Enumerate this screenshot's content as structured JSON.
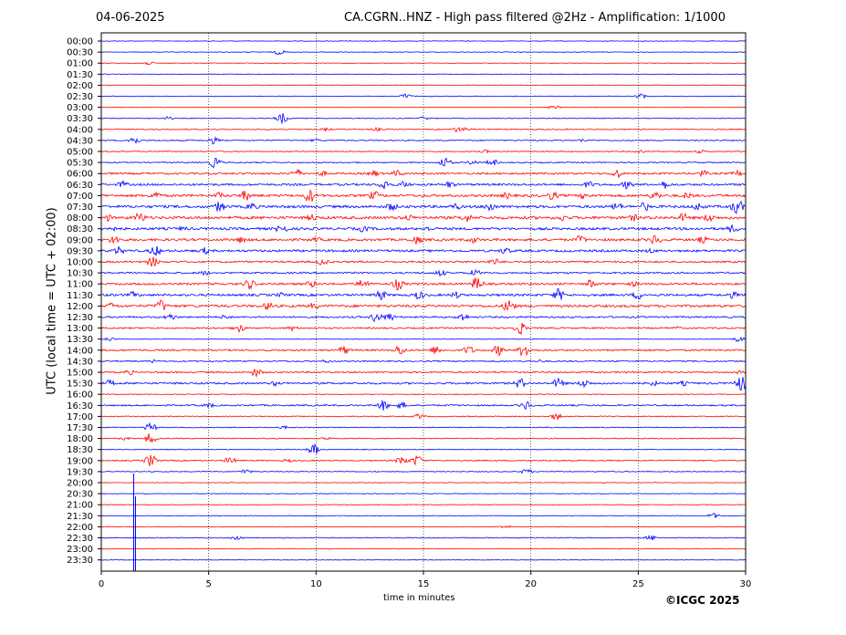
{
  "header": {
    "date": "04-06-2025",
    "title": "CA.CGRN..HNZ - High pass filtered @2Hz - Amplification: 1/1000"
  },
  "footer": {
    "copyright": "©ICGC 2025"
  },
  "chart_data": {
    "type": "line",
    "title": "CA.CGRN..HNZ - High pass filtered @2Hz - Amplification: 1/1000",
    "xlabel": "time in minutes",
    "ylabel": "UTC (local time = UTC + 02:00)",
    "xlim": [
      0,
      30
    ],
    "x_ticks": [
      0,
      5,
      10,
      15,
      20,
      25,
      30
    ],
    "grid": "vertical dotted lines at 5, 10, 15, 20, 25",
    "y_tick_labels": [
      "00:00",
      "00:30",
      "01:00",
      "01:30",
      "02:00",
      "02:30",
      "03:00",
      "03:30",
      "04:00",
      "04:30",
      "05:00",
      "05:30",
      "06:00",
      "06:30",
      "07:00",
      "07:30",
      "08:00",
      "08:30",
      "09:00",
      "09:30",
      "10:00",
      "10:30",
      "11:00",
      "11:30",
      "12:00",
      "12:30",
      "13:00",
      "13:30",
      "14:00",
      "14:30",
      "15:00",
      "15:30",
      "16:00",
      "16:30",
      "17:00",
      "17:30",
      "18:00",
      "18:30",
      "19:00",
      "19:30",
      "20:00",
      "20:30",
      "21:00",
      "21:30",
      "22:00",
      "22:30",
      "23:00",
      "23:30"
    ],
    "trace_colors": [
      "#0000ff",
      "#ff0000"
    ],
    "traces": [
      {
        "label": "00:00",
        "color": "#0000ff",
        "noise": 0.3,
        "bursts": []
      },
      {
        "label": "00:30",
        "color": "#0000ff",
        "noise": 0.3,
        "bursts": [
          [
            8.3,
            3
          ]
        ]
      },
      {
        "label": "01:00",
        "color": "#ff0000",
        "noise": 0.3,
        "bursts": [
          [
            2.2,
            2
          ]
        ]
      },
      {
        "label": "01:30",
        "color": "#0000ff",
        "noise": 0.3,
        "bursts": []
      },
      {
        "label": "02:00",
        "color": "#ff0000",
        "noise": 0.3,
        "bursts": []
      },
      {
        "label": "02:30",
        "color": "#0000ff",
        "noise": 0.3,
        "bursts": [
          [
            14.2,
            3
          ],
          [
            25.1,
            3
          ]
        ]
      },
      {
        "label": "03:00",
        "color": "#ff0000",
        "noise": 0.3,
        "bursts": [
          [
            21.1,
            2
          ]
        ]
      },
      {
        "label": "03:30",
        "color": "#0000ff",
        "noise": 0.4,
        "bursts": [
          [
            3.1,
            2
          ],
          [
            8.4,
            6
          ],
          [
            15.0,
            2
          ]
        ]
      },
      {
        "label": "04:00",
        "color": "#ff0000",
        "noise": 0.5,
        "bursts": [
          [
            10.5,
            2
          ],
          [
            12.8,
            2
          ],
          [
            16.6,
            3
          ],
          [
            17.0,
            2
          ]
        ]
      },
      {
        "label": "04:30",
        "color": "#0000ff",
        "noise": 0.6,
        "bursts": [
          [
            1.5,
            5
          ],
          [
            5.2,
            4
          ],
          [
            10.0,
            2
          ],
          [
            22.4,
            2
          ]
        ]
      },
      {
        "label": "05:00",
        "color": "#ff0000",
        "noise": 0.5,
        "bursts": [
          [
            17.9,
            2
          ],
          [
            25.1,
            2
          ],
          [
            27.9,
            2
          ]
        ]
      },
      {
        "label": "05:30",
        "color": "#0000ff",
        "noise": 0.6,
        "bursts": [
          [
            5.3,
            6
          ],
          [
            16.0,
            6
          ],
          [
            17.3,
            3
          ],
          [
            18.2,
            4
          ]
        ]
      },
      {
        "label": "06:00",
        "color": "#ff0000",
        "noise": 1.0,
        "bursts": [
          [
            9.1,
            5
          ],
          [
            10.3,
            3
          ],
          [
            12.7,
            4
          ],
          [
            13.8,
            4
          ],
          [
            24.0,
            5
          ],
          [
            28.0,
            4
          ],
          [
            29.6,
            4
          ]
        ]
      },
      {
        "label": "06:30",
        "color": "#0000ff",
        "noise": 1.1,
        "bursts": [
          [
            1.0,
            4
          ],
          [
            13.2,
            6
          ],
          [
            14.1,
            4
          ],
          [
            16.2,
            4
          ],
          [
            22.7,
            4
          ],
          [
            24.5,
            5
          ],
          [
            26.2,
            5
          ]
        ]
      },
      {
        "label": "07:00",
        "color": "#ff0000",
        "noise": 1.3,
        "bursts": [
          [
            2.5,
            5
          ],
          [
            5.5,
            4
          ],
          [
            6.7,
            6
          ],
          [
            9.7,
            8
          ],
          [
            12.7,
            5
          ],
          [
            18.9,
            4
          ],
          [
            21.0,
            5
          ],
          [
            22.5,
            4
          ],
          [
            25.8,
            5
          ],
          [
            27.3,
            4
          ]
        ]
      },
      {
        "label": "07:30",
        "color": "#0000ff",
        "noise": 1.4,
        "bursts": [
          [
            5.5,
            6
          ],
          [
            7.0,
            5
          ],
          [
            13.5,
            5
          ],
          [
            16.5,
            4
          ],
          [
            18.1,
            6
          ],
          [
            24.0,
            5
          ],
          [
            25.3,
            5
          ],
          [
            27.8,
            5
          ],
          [
            29.6,
            9
          ]
        ]
      },
      {
        "label": "08:00",
        "color": "#ff0000",
        "noise": 1.5,
        "bursts": [
          [
            0.3,
            4
          ],
          [
            1.8,
            6
          ],
          [
            9.8,
            4
          ],
          [
            14.3,
            4
          ],
          [
            17.0,
            5
          ],
          [
            21.5,
            4
          ],
          [
            24.8,
            4
          ],
          [
            27.1,
            5
          ],
          [
            28.3,
            5
          ]
        ]
      },
      {
        "label": "08:30",
        "color": "#0000ff",
        "noise": 1.3,
        "bursts": [
          [
            0.4,
            4
          ],
          [
            3.8,
            3
          ],
          [
            8.4,
            6
          ],
          [
            12.2,
            4
          ],
          [
            15.2,
            3
          ],
          [
            29.4,
            5
          ]
        ]
      },
      {
        "label": "09:00",
        "color": "#ff0000",
        "noise": 1.3,
        "bursts": [
          [
            0.6,
            5
          ],
          [
            6.5,
            4
          ],
          [
            10.0,
            3
          ],
          [
            14.7,
            5
          ],
          [
            17.3,
            4
          ],
          [
            22.3,
            5
          ],
          [
            25.8,
            6
          ],
          [
            28.0,
            4
          ]
        ]
      },
      {
        "label": "09:30",
        "color": "#0000ff",
        "noise": 1.2,
        "bursts": [
          [
            0.8,
            5
          ],
          [
            2.5,
            6
          ],
          [
            4.8,
            4
          ],
          [
            18.8,
            4
          ],
          [
            25.6,
            3
          ]
        ]
      },
      {
        "label": "10:00",
        "color": "#ff0000",
        "noise": 1.0,
        "bursts": [
          [
            2.4,
            6
          ],
          [
            10.3,
            4
          ],
          [
            18.3,
            4
          ]
        ]
      },
      {
        "label": "10:30",
        "color": "#0000ff",
        "noise": 0.9,
        "bursts": [
          [
            4.8,
            3
          ],
          [
            15.8,
            4
          ],
          [
            17.4,
            4
          ]
        ]
      },
      {
        "label": "11:00",
        "color": "#ff0000",
        "noise": 1.1,
        "bursts": [
          [
            6.9,
            6
          ],
          [
            9.8,
            4
          ],
          [
            12.2,
            6
          ],
          [
            13.8,
            7
          ],
          [
            17.5,
            8
          ],
          [
            22.8,
            5
          ],
          [
            24.8,
            3
          ]
        ]
      },
      {
        "label": "11:30",
        "color": "#0000ff",
        "noise": 1.2,
        "bursts": [
          [
            1.5,
            4
          ],
          [
            8.4,
            3
          ],
          [
            13.0,
            6
          ],
          [
            14.8,
            5
          ],
          [
            16.5,
            4
          ],
          [
            21.3,
            7
          ],
          [
            25.0,
            5
          ],
          [
            29.4,
            4
          ]
        ]
      },
      {
        "label": "12:00",
        "color": "#ff0000",
        "noise": 1.3,
        "bursts": [
          [
            0.5,
            4
          ],
          [
            2.8,
            7
          ],
          [
            7.8,
            5
          ],
          [
            9.9,
            4
          ],
          [
            19.0,
            8
          ]
        ]
      },
      {
        "label": "12:30",
        "color": "#0000ff",
        "noise": 0.9,
        "bursts": [
          [
            3.2,
            4
          ],
          [
            5.8,
            3
          ],
          [
            12.8,
            6
          ],
          [
            13.4,
            5
          ],
          [
            16.8,
            5
          ]
        ]
      },
      {
        "label": "13:00",
        "color": "#ff0000",
        "noise": 0.8,
        "bursts": [
          [
            6.4,
            5
          ],
          [
            8.9,
            3
          ],
          [
            19.5,
            7
          ],
          [
            26.8,
            2
          ]
        ]
      },
      {
        "label": "13:30",
        "color": "#0000ff",
        "noise": 0.3,
        "bursts": [
          [
            0.4,
            2
          ],
          [
            29.7,
            3
          ]
        ]
      },
      {
        "label": "14:00",
        "color": "#ff0000",
        "noise": 0.9,
        "bursts": [
          [
            11.3,
            5
          ],
          [
            13.9,
            6
          ],
          [
            15.6,
            5
          ],
          [
            17.1,
            5
          ],
          [
            18.5,
            6
          ],
          [
            19.7,
            8
          ]
        ]
      },
      {
        "label": "14:30",
        "color": "#0000ff",
        "noise": 0.7,
        "bursts": [
          [
            2.4,
            2
          ],
          [
            10.5,
            2
          ],
          [
            20.5,
            2
          ]
        ]
      },
      {
        "label": "15:00",
        "color": "#ff0000",
        "noise": 0.8,
        "bursts": [
          [
            1.3,
            3
          ],
          [
            7.2,
            5
          ],
          [
            29.8,
            3
          ]
        ]
      },
      {
        "label": "15:30",
        "color": "#0000ff",
        "noise": 1.0,
        "bursts": [
          [
            0.4,
            4
          ],
          [
            8.1,
            3
          ],
          [
            19.5,
            6
          ],
          [
            21.3,
            6
          ],
          [
            22.5,
            5
          ],
          [
            25.7,
            3
          ],
          [
            27.1,
            3
          ],
          [
            29.8,
            9
          ]
        ]
      },
      {
        "label": "16:00",
        "color": "#ff0000",
        "noise": 0.4,
        "bursts": []
      },
      {
        "label": "16:30",
        "color": "#0000ff",
        "noise": 0.8,
        "bursts": [
          [
            5.0,
            3
          ],
          [
            13.1,
            6
          ],
          [
            14.0,
            4
          ],
          [
            19.8,
            5
          ]
        ]
      },
      {
        "label": "17:00",
        "color": "#ff0000",
        "noise": 0.5,
        "bursts": [
          [
            14.8,
            3
          ],
          [
            21.2,
            4
          ]
        ]
      },
      {
        "label": "17:30",
        "color": "#0000ff",
        "noise": 0.5,
        "bursts": [
          [
            2.3,
            5
          ],
          [
            8.5,
            2
          ]
        ]
      },
      {
        "label": "18:00",
        "color": "#ff0000",
        "noise": 0.5,
        "bursts": [
          [
            1.1,
            2
          ],
          [
            2.3,
            6
          ],
          [
            10.5,
            2
          ]
        ]
      },
      {
        "label": "18:30",
        "color": "#0000ff",
        "noise": 0.4,
        "bursts": [
          [
            9.9,
            6
          ]
        ]
      },
      {
        "label": "19:00",
        "color": "#ff0000",
        "noise": 0.6,
        "bursts": [
          [
            2.3,
            7
          ],
          [
            6.0,
            4
          ],
          [
            8.7,
            2
          ],
          [
            14.0,
            5
          ],
          [
            14.7,
            6
          ]
        ]
      },
      {
        "label": "19:30",
        "color": "#0000ff",
        "noise": 0.4,
        "bursts": [
          [
            6.7,
            3
          ],
          [
            19.8,
            3
          ]
        ]
      },
      {
        "label": "20:00",
        "color": "#ff0000",
        "noise": 0.3,
        "bursts": []
      },
      {
        "label": "20:30",
        "color": "#0000ff",
        "noise": 0.3,
        "bursts": []
      },
      {
        "label": "21:00",
        "color": "#ff0000",
        "noise": 0.3,
        "bursts": []
      },
      {
        "label": "21:30",
        "color": "#0000ff",
        "noise": 0.3,
        "bursts": [
          [
            28.5,
            3
          ]
        ]
      },
      {
        "label": "22:00",
        "color": "#ff0000",
        "noise": 0.3,
        "bursts": [
          [
            18.8,
            2
          ]
        ]
      },
      {
        "label": "22:30",
        "color": "#0000ff",
        "noise": 0.5,
        "bursts": [
          [
            6.3,
            3
          ],
          [
            25.6,
            3
          ]
        ]
      },
      {
        "label": "23:00",
        "color": "#ff0000",
        "noise": 0.3,
        "bursts": []
      },
      {
        "label": "23:30",
        "color": "#0000ff",
        "noise": 0.3,
        "bursts": []
      }
    ],
    "spikes": [
      {
        "label": "20:00",
        "x": 1.55,
        "color": "#0000ff"
      }
    ]
  }
}
